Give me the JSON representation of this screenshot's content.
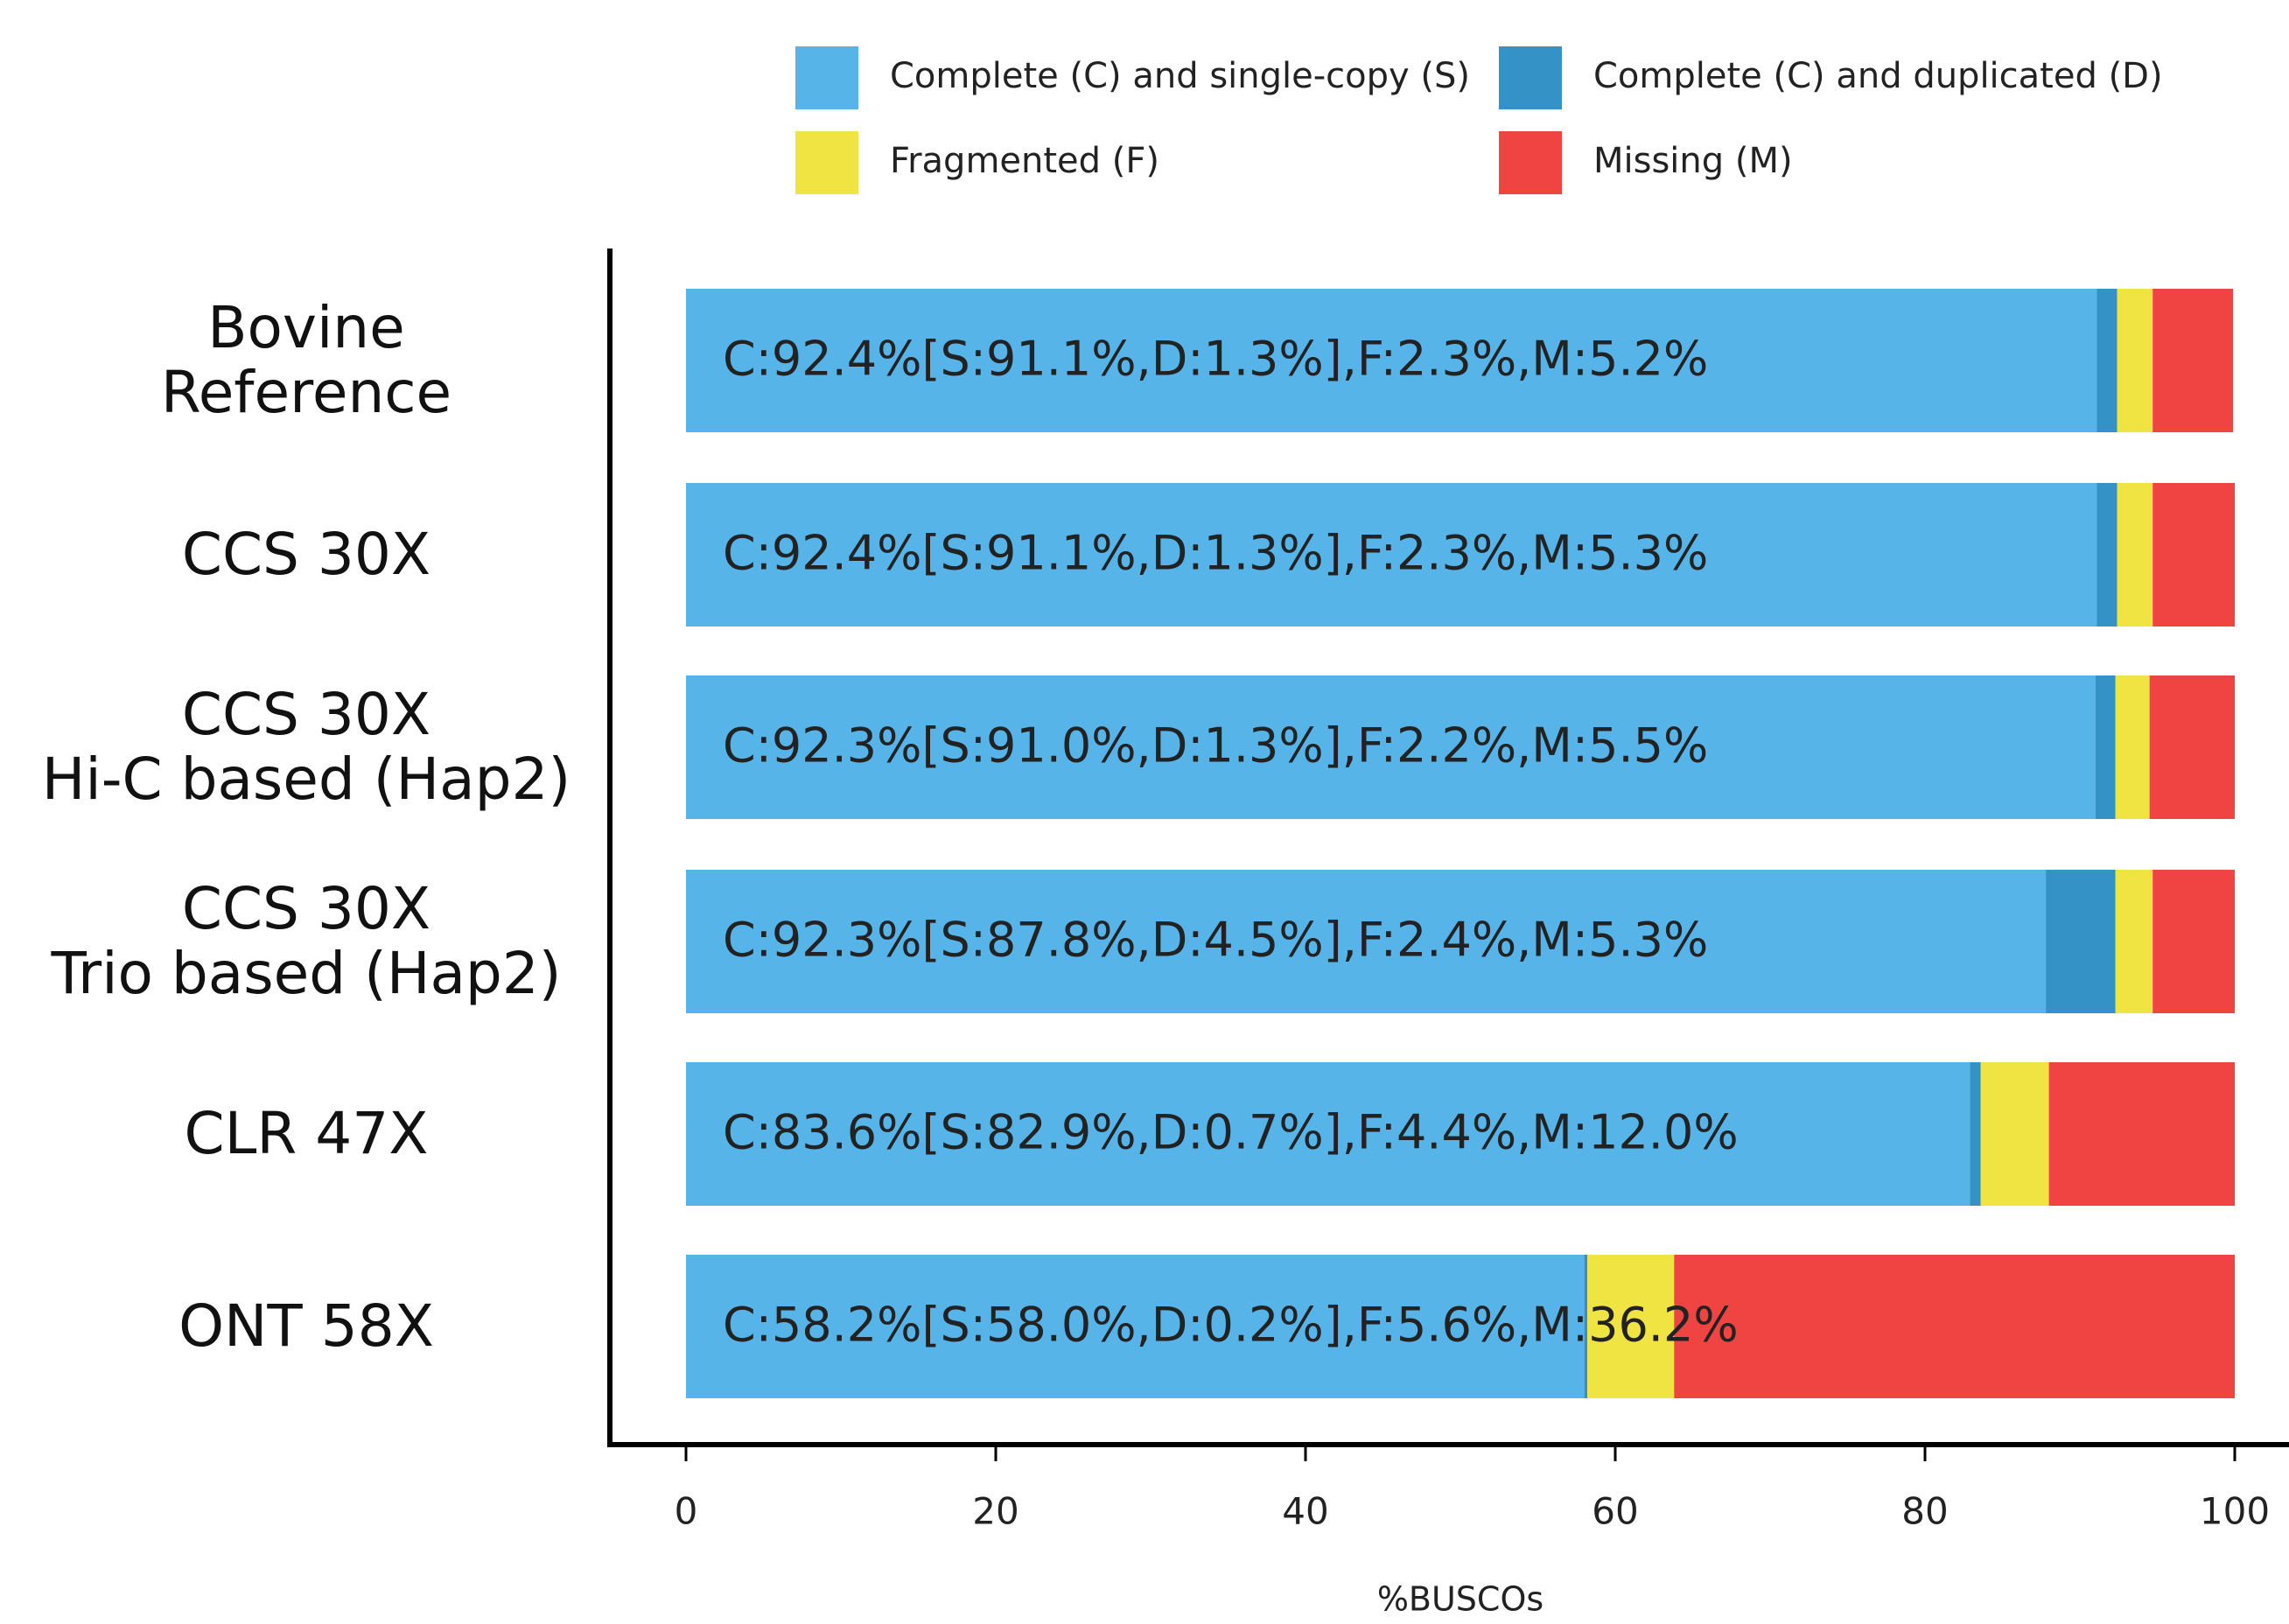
{
  "chart_data": {
    "type": "stacked-bar-horizontal",
    "x_label": "%BUSCOs",
    "categories": [
      "Bovine\nReference",
      "CCS 30X",
      "CCS 30X\nHi-C based (Hap2)",
      "CCS 30X\nTrio based (Hap2)",
      "CLR 47X",
      "ONT 58X"
    ],
    "series": [
      {
        "name": "Complete (C) and single-copy (S)",
        "color": "#56b4e9",
        "values": [
          91.1,
          91.1,
          91.0,
          87.8,
          82.9,
          58.0
        ]
      },
      {
        "name": "Complete (C) and duplicated (D)",
        "color": "#3492c7",
        "values": [
          1.3,
          1.3,
          1.3,
          4.5,
          0.7,
          0.2
        ]
      },
      {
        "name": "Fragmented (F)",
        "color": "#f0e442",
        "values": [
          2.3,
          2.3,
          2.2,
          2.4,
          4.4,
          5.6
        ]
      },
      {
        "name": "Missing (M)",
        "color": "#f04442",
        "values": [
          5.2,
          5.3,
          5.5,
          5.3,
          12.0,
          36.2
        ]
      }
    ],
    "annotations": [
      "C:92.4%[S:91.1%,D:1.3%],F:2.3%,M:5.2%",
      "C:92.4%[S:91.1%,D:1.3%],F:2.3%,M:5.3%",
      "C:92.3%[S:91.0%,D:1.3%],F:2.2%,M:5.5%",
      "C:92.3%[S:87.8%,D:4.5%],F:2.4%,M:5.3%",
      "C:83.6%[S:82.9%,D:0.7%],F:4.4%,M:12.0%",
      "C:58.2%[S:58.0%,D:0.2%],F:5.6%,M:36.2%"
    ],
    "xlim": [
      0,
      100
    ],
    "xticks": [
      0,
      20,
      40,
      60,
      80,
      100
    ],
    "legend": "top",
    "grid": false
  }
}
